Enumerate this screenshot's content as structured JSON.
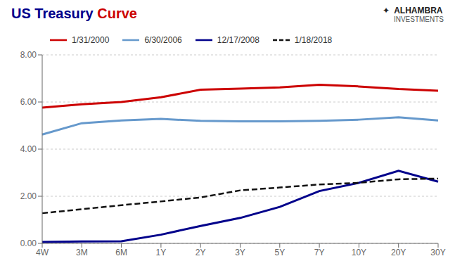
{
  "chart_data": {
    "type": "line",
    "title": [
      "US Treasury",
      "Curve"
    ],
    "title_colors": [
      "#00008B",
      "#CC0000"
    ],
    "annotations": [
      "✦  ALHAMBRA",
      "INVESTMENTS"
    ],
    "categories": [
      "4W",
      "3M",
      "6M",
      "1Y",
      "2Y",
      "3Y",
      "5Y",
      "7Y",
      "10Y",
      "20Y",
      "30Y"
    ],
    "series": [
      {
        "name": "1/31/2000",
        "color": "#CC0000",
        "line_style": "solid",
        "values": [
          5.76,
          5.9,
          6.0,
          6.2,
          6.52,
          6.57,
          6.62,
          6.73,
          6.66,
          6.55,
          6.48
        ]
      },
      {
        "name": "6/30/2006",
        "color": "#6699CC",
        "line_style": "solid",
        "values": [
          4.62,
          5.1,
          5.22,
          5.28,
          5.2,
          5.18,
          5.18,
          5.2,
          5.25,
          5.35,
          5.22
        ]
      },
      {
        "name": "12/17/2008",
        "color": "#00008B",
        "line_style": "solid",
        "values": [
          0.06,
          0.08,
          0.09,
          0.37,
          0.74,
          1.08,
          1.55,
          2.22,
          2.57,
          3.08,
          2.62
        ]
      },
      {
        "name": "1/18/2018",
        "color": "#111111",
        "line_style": "dashed",
        "values": [
          1.28,
          1.45,
          1.62,
          1.78,
          1.95,
          2.25,
          2.37,
          2.5,
          2.57,
          2.72,
          2.75
        ]
      }
    ],
    "ylim": [
      0,
      8.0
    ],
    "yticks": [
      {
        "value": 0.0,
        "label": "0.00"
      },
      {
        "value": 2.0,
        "label": "2.00"
      },
      {
        "value": 4.0,
        "label": "4.00"
      },
      {
        "value": 6.0,
        "label": "6.00"
      },
      {
        "value": 8.0,
        "label": "8.00"
      }
    ],
    "grid": true,
    "legend": "top"
  }
}
